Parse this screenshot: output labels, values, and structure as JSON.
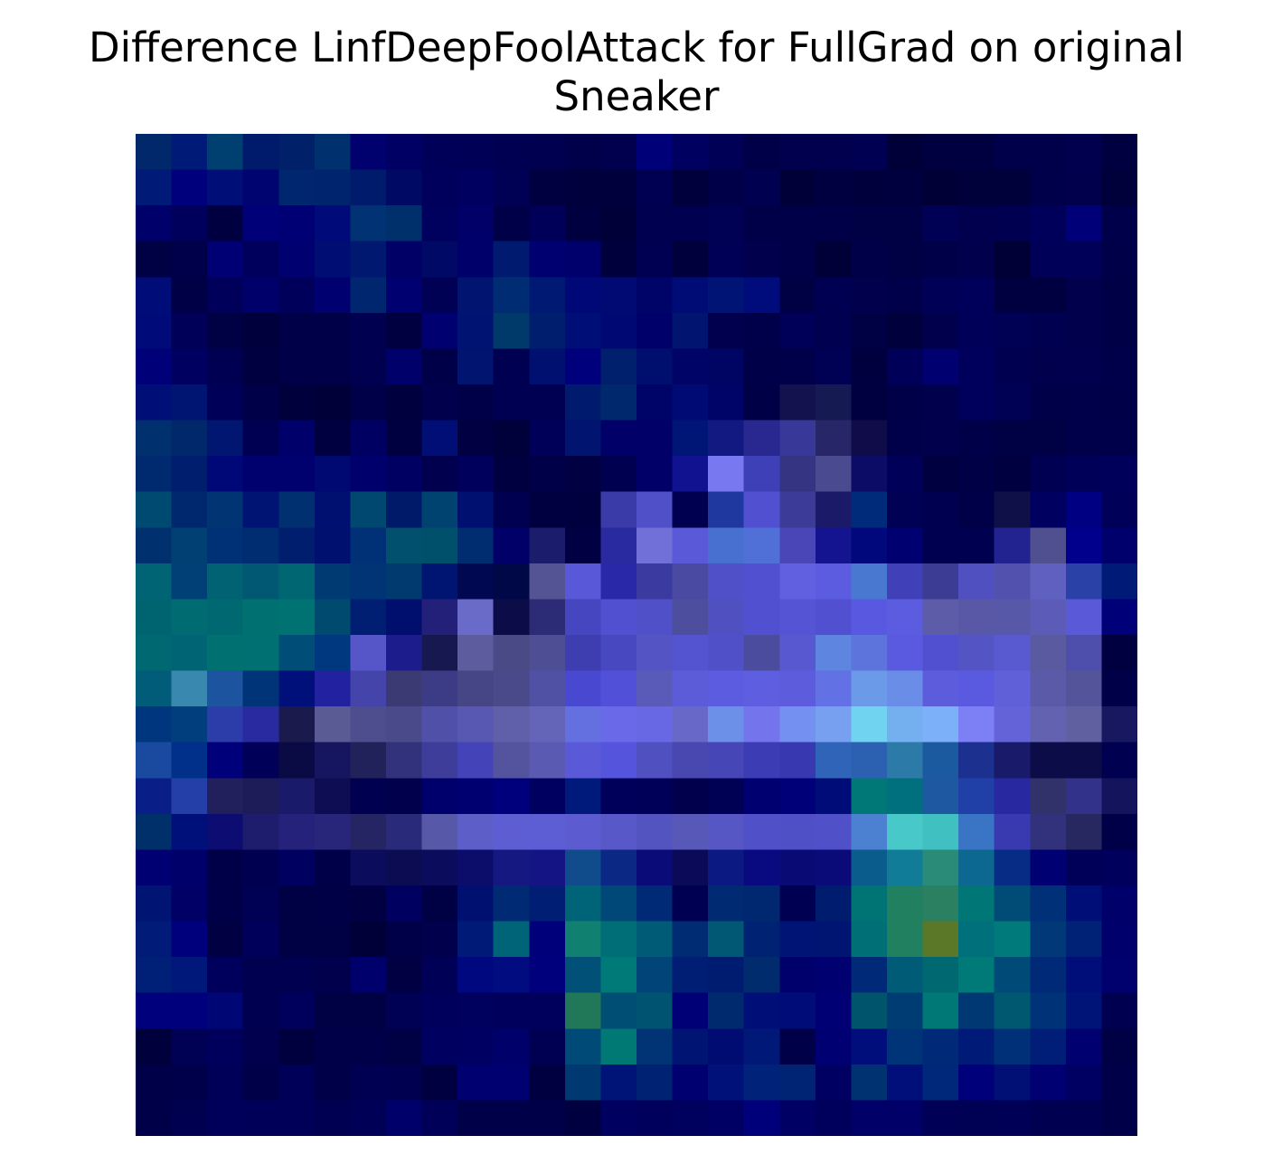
{
  "title": {
    "line1": "Difference LinfDeepFoolAttack for FullGrad on original",
    "line2": "Sneaker"
  },
  "chart_data": {
    "type": "heatmap",
    "title": "Difference LinfDeepFoolAttack for FullGrad on original Sneaker",
    "xlabel": "",
    "ylabel": "",
    "axes_visible": false,
    "grid": false,
    "rows": 28,
    "cols": 28,
    "cells": [
      [
        "#00286a",
        "#001a78",
        "#004070",
        "#001a6c",
        "#00206a",
        "#00306e",
        "#00006e",
        "#000064",
        "#000058",
        "#000056",
        "#000052",
        "#000050",
        "#00004a",
        "#00004e",
        "#000078",
        "#000060",
        "#000056",
        "#000048",
        "#00004e",
        "#00004e",
        "#000052",
        "#000038",
        "#000040",
        "#000040",
        "#00004a",
        "#00004a",
        "#00004e",
        "#000040"
      ],
      [
        "#001a78",
        "#00007c",
        "#000e78",
        "#000470",
        "#002670",
        "#00246e",
        "#001a6c",
        "#000a64",
        "#00005c",
        "#000060",
        "#000054",
        "#000040",
        "#00003c",
        "#00003c",
        "#000052",
        "#00003c",
        "#000048",
        "#000050",
        "#000038",
        "#000040",
        "#00003c",
        "#00003e",
        "#000036",
        "#00003a",
        "#00003a",
        "#00004a",
        "#00004c",
        "#00003a"
      ],
      [
        "#00006a",
        "#00005c",
        "#000040",
        "#000078",
        "#000074",
        "#000a78",
        "#003274",
        "#00306c",
        "#00005e",
        "#000068",
        "#000048",
        "#000058",
        "#000040",
        "#000038",
        "#000050",
        "#000050",
        "#000054",
        "#000048",
        "#000048",
        "#000048",
        "#000044",
        "#000044",
        "#000054",
        "#00004e",
        "#000050",
        "#00005a",
        "#000078",
        "#00004a"
      ],
      [
        "#000044",
        "#00004a",
        "#000074",
        "#00005c",
        "#000070",
        "#000e74",
        "#001870",
        "#000066",
        "#000a66",
        "#00006a",
        "#001a70",
        "#000070",
        "#00006c",
        "#00003c",
        "#000052",
        "#00003c",
        "#000056",
        "#00004c",
        "#000048",
        "#000038",
        "#000048",
        "#000044",
        "#000048",
        "#00004c",
        "#000036",
        "#000058",
        "#000058",
        "#000048"
      ],
      [
        "#000c78",
        "#000046",
        "#00005a",
        "#00006a",
        "#00005a",
        "#000070",
        "#002670",
        "#000070",
        "#000054",
        "#001470",
        "#002c74",
        "#001a74",
        "#000878",
        "#000a72",
        "#000468",
        "#000c76",
        "#001476",
        "#000c7c",
        "#000044",
        "#000052",
        "#00004c",
        "#00004a",
        "#000056",
        "#00005a",
        "#000040",
        "#000040",
        "#00004c",
        "#000046"
      ],
      [
        "#000a78",
        "#000058",
        "#000044",
        "#00003c",
        "#000048",
        "#000048",
        "#000050",
        "#000040",
        "#000070",
        "#001272",
        "#003a6a",
        "#001e6e",
        "#000e78",
        "#000874",
        "#00006a",
        "#001470",
        "#00004e",
        "#00004a",
        "#000058",
        "#000050",
        "#000044",
        "#00003c",
        "#00004c",
        "#000058",
        "#000054",
        "#000050",
        "#00004c",
        "#000046"
      ],
      [
        "#000078",
        "#000060",
        "#000052",
        "#000040",
        "#000048",
        "#000048",
        "#000050",
        "#00006a",
        "#000048",
        "#001470",
        "#000052",
        "#001070",
        "#00007c",
        "#00206e",
        "#000e6e",
        "#000466",
        "#000462",
        "#000048",
        "#00004a",
        "#000054",
        "#00003e",
        "#000058",
        "#000070",
        "#00005c",
        "#000050",
        "#00004c",
        "#00004e",
        "#00004a"
      ],
      [
        "#000e78",
        "#001472",
        "#000058",
        "#000048",
        "#00003c",
        "#000038",
        "#000048",
        "#00003e",
        "#00004c",
        "#000048",
        "#000052",
        "#000052",
        "#001a6e",
        "#00286c",
        "#000468",
        "#000a74",
        "#000468",
        "#000046",
        "#14124e",
        "#161a52",
        "#000040",
        "#000048",
        "#00004c",
        "#00005c",
        "#000054",
        "#000048",
        "#00004a",
        "#000048"
      ],
      [
        "#00306e",
        "#00286a",
        "#001670",
        "#000052",
        "#00006a",
        "#000040",
        "#000062",
        "#000040",
        "#000e76",
        "#000042",
        "#00003a",
        "#000058",
        "#001470",
        "#000068",
        "#000068",
        "#001676",
        "#121a82",
        "#282890",
        "#383898",
        "#262668",
        "#100c4a",
        "#00004a",
        "#00004c",
        "#000048",
        "#000044",
        "#000044",
        "#00004a",
        "#00004a"
      ],
      [
        "#002a70",
        "#001e6e",
        "#000878",
        "#00006e",
        "#00006e",
        "#000872",
        "#00006c",
        "#000062",
        "#00004e",
        "#00005c",
        "#000040",
        "#000048",
        "#000042",
        "#000050",
        "#000068",
        "#101290",
        "#7878f0",
        "#3e40b8",
        "#343482",
        "#4a4a90",
        "#0c0c66",
        "#000058",
        "#000040",
        "#000046",
        "#000040",
        "#000052",
        "#000058",
        "#00005a"
      ],
      [
        "#004a72",
        "#00286e",
        "#003472",
        "#001474",
        "#003070",
        "#001070",
        "#004870",
        "#001a6a",
        "#004270",
        "#001070",
        "#000050",
        "#000040",
        "#00003e",
        "#3a3aa8",
        "#5050c8",
        "#000050",
        "#1e38a0",
        "#5050d0",
        "#3c3c98",
        "#1a1a68",
        "#002a7a",
        "#000054",
        "#000050",
        "#000048",
        "#101048",
        "#000060",
        "#000082",
        "#000058"
      ],
      [
        "#00306e",
        "#004072",
        "#003076",
        "#002c72",
        "#001e6e",
        "#00106e",
        "#003076",
        "#00506e",
        "#00506c",
        "#002c70",
        "#000068",
        "#1c1c6c",
        "#000042",
        "#2a2aa0",
        "#7070d8",
        "#5a5ad8",
        "#4870d0",
        "#5070d8",
        "#4a46b8",
        "#141490",
        "#00087c",
        "#000070",
        "#000050",
        "#000050",
        "#222290",
        "#505090",
        "#00008c",
        "#00006c"
      ],
      [
        "#006474",
        "#004076",
        "#006272",
        "#005872",
        "#006672",
        "#003a72",
        "#003474",
        "#003a6e",
        "#001472",
        "#000852",
        "#000848",
        "#545494",
        "#5858d8",
        "#2828a8",
        "#3a3aa0",
        "#4a4aa2",
        "#5050c8",
        "#5050d0",
        "#6060e0",
        "#5c5ce0",
        "#4878d0",
        "#4040b8",
        "#3c3c94",
        "#5050c0",
        "#5252ae",
        "#6060c0",
        "#2a42a8",
        "#001a78"
      ],
      [
        "#006470",
        "#006c72",
        "#006870",
        "#007070",
        "#007272",
        "#004a70",
        "#001e72",
        "#000e6e",
        "#222078",
        "#6a6ac8",
        "#0c0c48",
        "#2c2c76",
        "#4646c0",
        "#5050d0",
        "#5050c8",
        "#4e4e9e",
        "#5050c0",
        "#5050d0",
        "#5454d4",
        "#5050d0",
        "#5858e0",
        "#5c5ce0",
        "#5c5ca8",
        "#5858a6",
        "#5858a8",
        "#5c5cb8",
        "#5a5ad8",
        "#000078"
      ],
      [
        "#006870",
        "#006474",
        "#007070",
        "#007072",
        "#004e78",
        "#003880",
        "#5656c8",
        "#1c1c8c",
        "#181850",
        "#5c5c9e",
        "#4a4a86",
        "#4e4e94",
        "#3e3eb0",
        "#4848c0",
        "#5454c4",
        "#5454d0",
        "#5050c8",
        "#4c4c9e",
        "#5858d0",
        "#5e86e0",
        "#5c74dc",
        "#5a5ae0",
        "#5050d0",
        "#5454c4",
        "#5a5ad0",
        "#5a5aa0",
        "#4e4eac",
        "#000040"
      ],
      [
        "#005c78",
        "#3888b0",
        "#1c54a0",
        "#003478",
        "#00107a",
        "#2222a0",
        "#4444aa",
        "#3c3a72",
        "#3c3c86",
        "#464686",
        "#4a4a8a",
        "#5050a4",
        "#4848d0",
        "#5050d8",
        "#5a5ab8",
        "#5c5cd8",
        "#5c5ce0",
        "#5e5ee0",
        "#5c5cdc",
        "#6272e4",
        "#6a9ae8",
        "#6a8ee8",
        "#5c5cdc",
        "#5a5ae0",
        "#6060d8",
        "#5a5aa8",
        "#54549a",
        "#000048"
      ],
      [
        "#00367e",
        "#003e7e",
        "#2c3ca8",
        "#2a2aa0",
        "#1a1a4c",
        "#5a5a94",
        "#4e4e8e",
        "#4a4a8a",
        "#5050a8",
        "#5858b2",
        "#6060aa",
        "#6464b8",
        "#6470e0",
        "#6a6ae8",
        "#6868e4",
        "#6868c8",
        "#6c90e8",
        "#7474ec",
        "#7490f0",
        "#78a0f0",
        "#70d4f0",
        "#74b0f0",
        "#7cb0f8",
        "#7c80f4",
        "#6464d8",
        "#6262b0",
        "#6060a0",
        "#181860"
      ],
      [
        "#1a4aa0",
        "#00308a",
        "#00007a",
        "#000058",
        "#0a0a44",
        "#161660",
        "#22225a",
        "#32327c",
        "#3e3e9a",
        "#4444b8",
        "#54549e",
        "#5a5ab2",
        "#5a5ad8",
        "#5454dc",
        "#5050c0",
        "#4848b0",
        "#4646b6",
        "#3c3cb4",
        "#3838b0",
        "#3064b8",
        "#2c60b0",
        "#2c7aa8",
        "#1c5aa0",
        "#1c3090",
        "#1a1a6a",
        "#0c0c48",
        "#0c0c48",
        "#000050"
      ],
      [
        "#0a1e88",
        "#2440a8",
        "#22205c",
        "#1e1c58",
        "#1a1a6a",
        "#0e0c52",
        "#000050",
        "#00004c",
        "#00006c",
        "#000070",
        "#00007c",
        "#000060",
        "#001a7c",
        "#00005a",
        "#000058",
        "#00004c",
        "#000054",
        "#000070",
        "#000078",
        "#000c78",
        "#007878",
        "#00707e",
        "#1e58a0",
        "#2040a8",
        "#2828a0",
        "#32326a",
        "#32328a",
        "#14145c"
      ],
      [
        "#00306a",
        "#00107a",
        "#0c0c72",
        "#1e1c6c",
        "#24227a",
        "#28267a",
        "#252564",
        "#2a2a7a",
        "#5858a8",
        "#5e5ec8",
        "#5e5ed2",
        "#5e5ed4",
        "#5c5cd0",
        "#5858c8",
        "#5454c0",
        "#5858b8",
        "#5656c4",
        "#5050c8",
        "#5050c6",
        "#5050c8",
        "#4c80d0",
        "#48c8c8",
        "#40c0c0",
        "#3a74c4",
        "#3a3ab0",
        "#32327c",
        "#282860",
        "#000048"
      ],
      [
        "#000072",
        "#00006a",
        "#000048",
        "#000050",
        "#000060",
        "#000048",
        "#0c0c5c",
        "#0c0c52",
        "#0c0c5c",
        "#0c0c6a",
        "#141880",
        "#141484",
        "#104c8c",
        "#0a2884",
        "#0a0a78",
        "#0a0a58",
        "#0a1a82",
        "#0a0a80",
        "#0a0a74",
        "#0a0a78",
        "#0a5c8c",
        "#107c98",
        "#2a8c78",
        "#0c6890",
        "#062c86",
        "#000072",
        "#000058",
        "#00005c"
      ],
      [
        "#001474",
        "#000066",
        "#000048",
        "#000054",
        "#000044",
        "#000046",
        "#000042",
        "#000060",
        "#000044",
        "#001070",
        "#002a74",
        "#001e74",
        "#006478",
        "#004878",
        "#002a76",
        "#000052",
        "#002a72",
        "#002870",
        "#000052",
        "#001c6e",
        "#007474",
        "#208060",
        "#2a8060",
        "#007676",
        "#004c76",
        "#003078",
        "#000e78",
        "#00006a"
      ],
      [
        "#001c78",
        "#00007c",
        "#000042",
        "#00005a",
        "#000044",
        "#000044",
        "#000038",
        "#000048",
        "#00004c",
        "#001a78",
        "#006478",
        "#00007a",
        "#108070",
        "#006e76",
        "#005c76",
        "#002c74",
        "#005874",
        "#002272",
        "#001476",
        "#001472",
        "#007076",
        "#208060",
        "#5a7828",
        "#00707a",
        "#007a7a",
        "#003878",
        "#002276",
        "#00006c"
      ],
      [
        "#002078",
        "#00187a",
        "#00005c",
        "#000050",
        "#000050",
        "#00004c",
        "#00006c",
        "#000042",
        "#000056",
        "#000880",
        "#000c80",
        "#00007c",
        "#005078",
        "#007a78",
        "#004478",
        "#001e74",
        "#001c70",
        "#002c6e",
        "#00006c",
        "#000070",
        "#002a78",
        "#005c76",
        "#006870",
        "#007a78",
        "#004a78",
        "#002a78",
        "#000e7a",
        "#00006e"
      ],
      [
        "#00007c",
        "#00007c",
        "#000674",
        "#000050",
        "#00005c",
        "#000044",
        "#000044",
        "#000054",
        "#00005c",
        "#00005e",
        "#00005c",
        "#00005c",
        "#207858",
        "#004e74",
        "#005472",
        "#000076",
        "#002a6e",
        "#000e78",
        "#000c78",
        "#000074",
        "#00546c",
        "#003c74",
        "#007876",
        "#003874",
        "#005870",
        "#003278",
        "#001478",
        "#000050"
      ],
      [
        "#00003c",
        "#000054",
        "#00005c",
        "#00004e",
        "#00003e",
        "#000048",
        "#000048",
        "#000044",
        "#000060",
        "#000062",
        "#00006a",
        "#000052",
        "#004a78",
        "#007874",
        "#003474",
        "#001474",
        "#000c72",
        "#001878",
        "#000048",
        "#000072",
        "#000e7c",
        "#003478",
        "#002a78",
        "#001a78",
        "#003078",
        "#001e78",
        "#000070",
        "#000044"
      ],
      [
        "#000048",
        "#00004a",
        "#000058",
        "#000048",
        "#000058",
        "#000048",
        "#000052",
        "#000050",
        "#000040",
        "#000070",
        "#000070",
        "#000040",
        "#003872",
        "#001478",
        "#002272",
        "#000070",
        "#00127a",
        "#002278",
        "#002474",
        "#000062",
        "#003272",
        "#000f7a",
        "#00287a",
        "#00007a",
        "#001074",
        "#000072",
        "#000062",
        "#000048"
      ],
      [
        "#000048",
        "#000050",
        "#00005a",
        "#000058",
        "#000058",
        "#000052",
        "#000056",
        "#00006a",
        "#000058",
        "#000048",
        "#000048",
        "#000048",
        "#000040",
        "#000060",
        "#00005c",
        "#00005e",
        "#000064",
        "#00007a",
        "#000064",
        "#00005c",
        "#000068",
        "#000068",
        "#000056",
        "#000054",
        "#000056",
        "#000050",
        "#000050",
        "#000048"
      ]
    ]
  }
}
